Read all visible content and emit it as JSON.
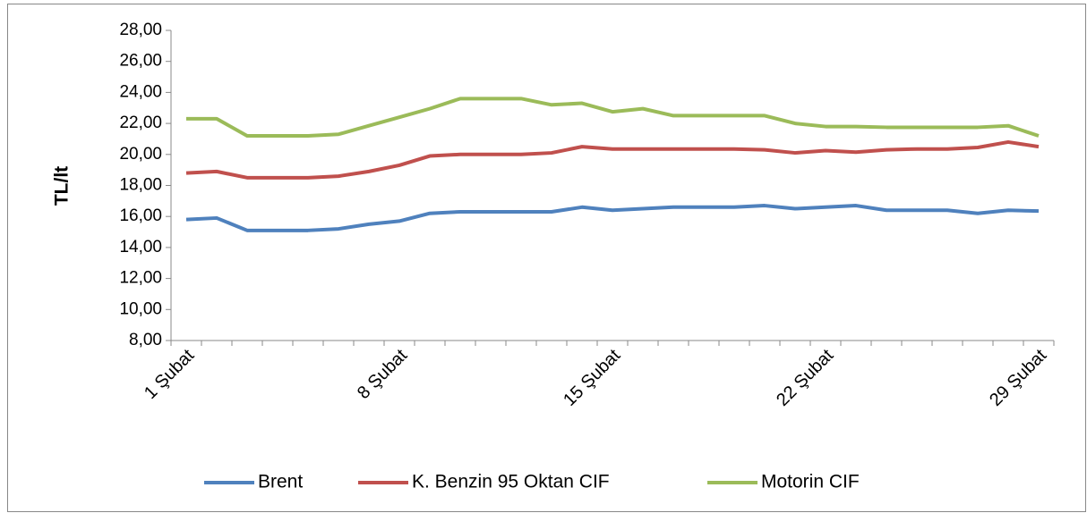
{
  "chart_data": {
    "type": "line",
    "y_label": "TL/lt",
    "categories": [
      "1 Şubat",
      null,
      null,
      null,
      null,
      null,
      null,
      "8 Şubat",
      null,
      null,
      null,
      null,
      null,
      null,
      "15 Şubat",
      null,
      null,
      null,
      null,
      null,
      null,
      "22 Şubat",
      null,
      null,
      null,
      null,
      null,
      null,
      "29 Şubat"
    ],
    "series": [
      {
        "name": "Brent",
        "color": "#4f81bd",
        "values": [
          15.8,
          15.9,
          15.1,
          15.1,
          15.1,
          15.2,
          15.5,
          15.7,
          16.2,
          16.3,
          16.3,
          16.3,
          16.3,
          16.6,
          16.4,
          16.5,
          16.6,
          16.6,
          16.6,
          16.7,
          16.5,
          16.6,
          16.7,
          16.4,
          16.4,
          16.4,
          16.2,
          16.4,
          16.35
        ]
      },
      {
        "name": "K. Benzin 95 Oktan CIF",
        "color": "#c0504d",
        "values": [
          18.8,
          18.9,
          18.5,
          18.5,
          18.5,
          18.6,
          18.9,
          19.3,
          19.9,
          20.0,
          20.0,
          20.0,
          20.1,
          20.5,
          20.35,
          20.35,
          20.35,
          20.35,
          20.35,
          20.3,
          20.1,
          20.25,
          20.15,
          20.3,
          20.35,
          20.35,
          20.45,
          20.8,
          20.5
        ]
      },
      {
        "name": "Motorin CIF",
        "color": "#9bbb59",
        "values": [
          22.3,
          22.3,
          21.2,
          21.2,
          21.2,
          21.3,
          21.85,
          22.4,
          22.95,
          23.6,
          23.6,
          23.6,
          23.2,
          23.3,
          22.75,
          22.95,
          22.5,
          22.5,
          22.5,
          22.5,
          22.0,
          21.8,
          21.8,
          21.75,
          21.75,
          21.75,
          21.75,
          21.85,
          21.2
        ]
      }
    ],
    "ylim": [
      8,
      28
    ],
    "yticks": [
      {
        "value": 8,
        "label": "8,00"
      },
      {
        "value": 10,
        "label": "10,00"
      },
      {
        "value": 12,
        "label": "12,00"
      },
      {
        "value": 14,
        "label": "14,00"
      },
      {
        "value": 16,
        "label": "16,00"
      },
      {
        "value": 18,
        "label": "18,00"
      },
      {
        "value": 20,
        "label": "20,00"
      },
      {
        "value": 22,
        "label": "22,00"
      },
      {
        "value": 24,
        "label": "24,00"
      },
      {
        "value": 26,
        "label": "26,00"
      },
      {
        "value": 28,
        "label": "28,00"
      }
    ],
    "legend": "bottom"
  }
}
